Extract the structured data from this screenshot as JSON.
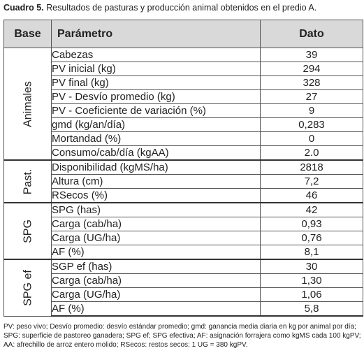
{
  "caption": {
    "number": "Cuadro 5.",
    "text": " Resultados de pasturas y producción animal obtenidos en el predio A."
  },
  "headers": {
    "base": "Base",
    "parametro": "Parámetro",
    "dato": "Dato"
  },
  "groups": [
    {
      "label": "Animales",
      "rows": [
        {
          "param": "Cabezas",
          "value": "39"
        },
        {
          "param": "PV inicial (kg)",
          "value": "294"
        },
        {
          "param": "PV final (kg)",
          "value": "328"
        },
        {
          "param": "PV - Desvío promedio (kg)",
          "value": "27"
        },
        {
          "param": "PV - Coeficiente de variación (%)",
          "value": "9"
        },
        {
          "param": "gmd (kg/an/día)",
          "value": "0,283"
        },
        {
          "param": "Mortandad (%)",
          "value": "0"
        },
        {
          "param": "Consumo/cab/día (kgAA)",
          "value": "2.0"
        }
      ]
    },
    {
      "label": "Past.",
      "rows": [
        {
          "param": "Disponibilidad (kgMS/ha)",
          "value": "2818"
        },
        {
          "param": "Altura (cm)",
          "value": "7,2"
        },
        {
          "param": "RSecos (%)",
          "value": "46"
        }
      ]
    },
    {
      "label": "SPG",
      "rows": [
        {
          "param": "SPG (has)",
          "value": "42"
        },
        {
          "param": "Carga (cab/ha)",
          "value": "0,93"
        },
        {
          "param": "Carga (UG/ha)",
          "value": "0,76"
        },
        {
          "param": "AF (%)",
          "value": "8,1"
        }
      ]
    },
    {
      "label": "SPG ef",
      "rows": [
        {
          "param": "SGP ef (has)",
          "value": "30"
        },
        {
          "param": "Carga (cab/ha)",
          "value": "1,30"
        },
        {
          "param": "Carga (UG/ha)",
          "value": "1,06"
        },
        {
          "param": "AF (%)",
          "value": "5,8"
        }
      ]
    }
  ],
  "footnote": "PV: peso vivo; Desvío promedio: desvío estándar promedio; gmd: ganancia media diaria en kg por animal por día; SPG: superficie de pastoreo ganadera; SPG ef; SPG efectiva; AF: asignación forrajera como kgMS cada 100 kgPV; AA: afrechillo de arroz entero molido; RSecos: restos secos; 1 UG = 380 kgPV."
}
